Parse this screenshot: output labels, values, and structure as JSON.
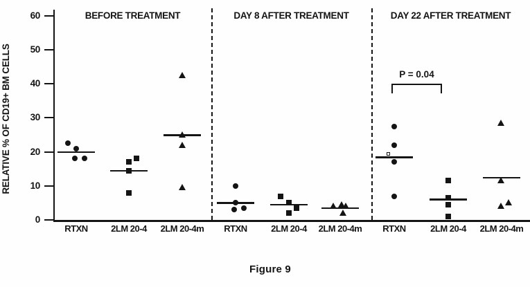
{
  "figure": {
    "caption": "Figure 9"
  },
  "colors": {
    "ink": "#141414",
    "background": "#fefefe"
  },
  "chart_data": {
    "type": "scatter",
    "title": "",
    "xlabel": "",
    "ylabel": "RELATIVE % OF CD19+ BM CELLS",
    "ylim": [
      0,
      60
    ],
    "yticks": [
      0,
      10,
      20,
      30,
      40,
      50,
      60
    ],
    "grid": false,
    "legend": "none",
    "marker_key": {
      "RTXN": "circle",
      "2LM 20-4": "square",
      "2LM 20-4m": "triangle"
    },
    "panels": [
      {
        "title": "BEFORE TREATMENT",
        "groups": [
          {
            "label": "RTXN",
            "marker": "circle",
            "median": 20,
            "points": [
              {
                "v": 22.5,
                "dx": -12
              },
              {
                "v": 21,
                "dx": 0
              },
              {
                "v": 18,
                "dx": -2
              },
              {
                "v": 18,
                "dx": 12
              }
            ]
          },
          {
            "label": "2LM 20-4",
            "marker": "square",
            "median": 14.5,
            "points": [
              {
                "v": 18,
                "dx": 11
              },
              {
                "v": 17,
                "dx": 0
              },
              {
                "v": 14.5,
                "dx": 0
              },
              {
                "v": 8,
                "dx": 0
              }
            ]
          },
          {
            "label": "2LM 20-4m",
            "marker": "triangle",
            "median": 25,
            "points": [
              {
                "v": 42.5,
                "dx": 0
              },
              {
                "v": 25,
                "dx": 0
              },
              {
                "v": 22,
                "dx": 0
              },
              {
                "v": 9.5,
                "dx": 0
              }
            ]
          }
        ]
      },
      {
        "title": "DAY 8 AFTER TREATMENT",
        "groups": [
          {
            "label": "RTXN",
            "marker": "circle",
            "median": 5,
            "points": [
              {
                "v": 10,
                "dx": 0
              },
              {
                "v": 5,
                "dx": 0
              },
              {
                "v": 3,
                "dx": -2
              },
              {
                "v": 3.5,
                "dx": 12
              }
            ]
          },
          {
            "label": "2LM 20-4",
            "marker": "square",
            "median": 4.5,
            "points": [
              {
                "v": 7,
                "dx": -12
              },
              {
                "v": 5,
                "dx": 0
              },
              {
                "v": 3.5,
                "dx": 11
              },
              {
                "v": 2,
                "dx": 0
              }
            ]
          },
          {
            "label": "2LM 20-4m",
            "marker": "triangle",
            "median": 3.5,
            "points": [
              {
                "v": 4,
                "dx": -10
              },
              {
                "v": 4.5,
                "dx": 2
              },
              {
                "v": 4,
                "dx": 8
              },
              {
                "v": 2,
                "dx": 4
              }
            ]
          }
        ]
      },
      {
        "title": "DAY 22 AFTER TREATMENT",
        "annotation": {
          "text": "P = 0.04",
          "y": 40,
          "between": [
            "RTXN",
            "2LM 20-4"
          ]
        },
        "artifact": {
          "v": 19.5,
          "dx": -11
        },
        "groups": [
          {
            "label": "RTXN",
            "marker": "circle",
            "median": 18.5,
            "points": [
              {
                "v": 27.5,
                "dx": 0
              },
              {
                "v": 22,
                "dx": 0
              },
              {
                "v": 17,
                "dx": 0
              },
              {
                "v": 7,
                "dx": 0
              }
            ]
          },
          {
            "label": "2LM 20-4",
            "marker": "square",
            "median": 6,
            "points": [
              {
                "v": 11.5,
                "dx": 0
              },
              {
                "v": 6.5,
                "dx": 0
              },
              {
                "v": 4.5,
                "dx": 0
              },
              {
                "v": 1,
                "dx": 0
              }
            ]
          },
          {
            "label": "2LM 20-4m",
            "marker": "triangle",
            "median": 12.5,
            "points": [
              {
                "v": 28.5,
                "dx": -1
              },
              {
                "v": 11.5,
                "dx": -1
              },
              {
                "v": 5,
                "dx": 10
              },
              {
                "v": 4,
                "dx": -1
              }
            ]
          }
        ]
      }
    ]
  }
}
